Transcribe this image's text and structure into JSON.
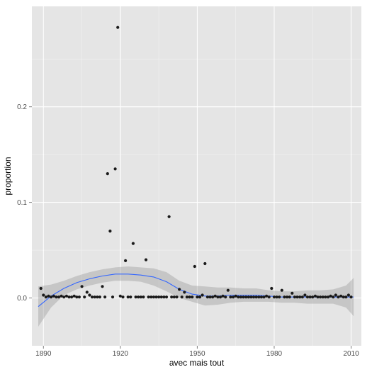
{
  "chart_data": {
    "type": "scatter",
    "title": "",
    "xlabel": "avec mais tout",
    "ylabel": "proportion",
    "xlim": [
      1885.5,
      2014
    ],
    "ylim": [
      -0.05,
      0.305
    ],
    "xticks": [
      1890,
      1920,
      1950,
      1980,
      2010
    ],
    "xtick_labels": [
      "1890",
      "1920",
      "1950",
      "1980",
      "2010"
    ],
    "yticks": [
      0.0,
      0.1,
      0.2
    ],
    "ytick_labels": [
      "0.0",
      "0.1",
      "0.2"
    ],
    "grid": true,
    "legend": "none",
    "colors": {
      "panel_background": "#e5e5e5",
      "grid_major": "#ffffff",
      "grid_minor": "#f2f2f2",
      "points": "#1a1a1a",
      "smooth_line": "#3366ff",
      "confidence_band": "#999999"
    },
    "points": [
      [
        1889,
        0.01
      ],
      [
        1890,
        0.003
      ],
      [
        1891,
        0.001
      ],
      [
        1892,
        0.002
      ],
      [
        1893,
        0.001
      ],
      [
        1894,
        0.002
      ],
      [
        1895,
        0.001
      ],
      [
        1896,
        0.001
      ],
      [
        1897,
        0.002
      ],
      [
        1898,
        0.001
      ],
      [
        1899,
        0.002
      ],
      [
        1900,
        0.001
      ],
      [
        1901,
        0.001
      ],
      [
        1902,
        0.002
      ],
      [
        1903,
        0.001
      ],
      [
        1904,
        0.001
      ],
      [
        1905,
        0.012
      ],
      [
        1906,
        0.001
      ],
      [
        1907,
        0.006
      ],
      [
        1908,
        0.003
      ],
      [
        1909,
        0.001
      ],
      [
        1910,
        0.001
      ],
      [
        1911,
        0.001
      ],
      [
        1912,
        0.001
      ],
      [
        1913,
        0.012
      ],
      [
        1914,
        0.001
      ],
      [
        1915,
        0.13
      ],
      [
        1916,
        0.07
      ],
      [
        1917,
        0.001
      ],
      [
        1918,
        0.135
      ],
      [
        1919,
        0.283
      ],
      [
        1920,
        0.002
      ],
      [
        1921,
        0.001
      ],
      [
        1922,
        0.039
      ],
      [
        1923,
        0.001
      ],
      [
        1924,
        0.001
      ],
      [
        1925,
        0.057
      ],
      [
        1926,
        0.001
      ],
      [
        1927,
        0.001
      ],
      [
        1928,
        0.001
      ],
      [
        1929,
        0.001
      ],
      [
        1930,
        0.04
      ],
      [
        1931,
        0.001
      ],
      [
        1932,
        0.001
      ],
      [
        1933,
        0.001
      ],
      [
        1934,
        0.001
      ],
      [
        1935,
        0.001
      ],
      [
        1936,
        0.001
      ],
      [
        1937,
        0.001
      ],
      [
        1938,
        0.001
      ],
      [
        1939,
        0.085
      ],
      [
        1940,
        0.001
      ],
      [
        1941,
        0.001
      ],
      [
        1942,
        0.001
      ],
      [
        1943,
        0.009
      ],
      [
        1944,
        0.001
      ],
      [
        1945,
        0.006
      ],
      [
        1946,
        0.001
      ],
      [
        1947,
        0.001
      ],
      [
        1948,
        0.001
      ],
      [
        1949,
        0.033
      ],
      [
        1950,
        0.001
      ],
      [
        1951,
        0.001
      ],
      [
        1952,
        0.003
      ],
      [
        1953,
        0.036
      ],
      [
        1954,
        0.001
      ],
      [
        1955,
        0.001
      ],
      [
        1956,
        0.001
      ],
      [
        1957,
        0.002
      ],
      [
        1958,
        0.001
      ],
      [
        1959,
        0.001
      ],
      [
        1960,
        0.002
      ],
      [
        1961,
        0.001
      ],
      [
        1962,
        0.008
      ],
      [
        1963,
        0.001
      ],
      [
        1964,
        0.001
      ],
      [
        1965,
        0.002
      ],
      [
        1966,
        0.001
      ],
      [
        1967,
        0.001
      ],
      [
        1968,
        0.001
      ],
      [
        1969,
        0.001
      ],
      [
        1970,
        0.001
      ],
      [
        1971,
        0.001
      ],
      [
        1972,
        0.001
      ],
      [
        1973,
        0.001
      ],
      [
        1974,
        0.001
      ],
      [
        1975,
        0.001
      ],
      [
        1976,
        0.001
      ],
      [
        1977,
        0.002
      ],
      [
        1978,
        0.001
      ],
      [
        1979,
        0.01
      ],
      [
        1980,
        0.001
      ],
      [
        1981,
        0.001
      ],
      [
        1982,
        0.001
      ],
      [
        1983,
        0.008
      ],
      [
        1984,
        0.001
      ],
      [
        1985,
        0.001
      ],
      [
        1986,
        0.001
      ],
      [
        1987,
        0.005
      ],
      [
        1988,
        0.001
      ],
      [
        1989,
        0.001
      ],
      [
        1990,
        0.001
      ],
      [
        1991,
        0.001
      ],
      [
        1992,
        0.003
      ],
      [
        1993,
        0.001
      ],
      [
        1994,
        0.001
      ],
      [
        1995,
        0.001
      ],
      [
        1996,
        0.002
      ],
      [
        1997,
        0.001
      ],
      [
        1998,
        0.001
      ],
      [
        1999,
        0.001
      ],
      [
        2000,
        0.001
      ],
      [
        2001,
        0.001
      ],
      [
        2002,
        0.002
      ],
      [
        2003,
        0.001
      ],
      [
        2004,
        0.003
      ],
      [
        2005,
        0.001
      ],
      [
        2006,
        0.002
      ],
      [
        2007,
        0.001
      ],
      [
        2008,
        0.001
      ],
      [
        2009,
        0.003
      ],
      [
        2010,
        0.001
      ]
    ],
    "smooth_fit": {
      "x": [
        1888,
        1893,
        1898,
        1903,
        1908,
        1913,
        1918,
        1923,
        1928,
        1933,
        1938,
        1943,
        1948,
        1953,
        1958,
        1963,
        1968,
        1973,
        1978,
        1983,
        1988,
        1993,
        1998,
        2003,
        2008,
        2011
      ],
      "y": [
        -0.009,
        0.002,
        0.01,
        0.016,
        0.02,
        0.023,
        0.025,
        0.025,
        0.024,
        0.022,
        0.017,
        0.009,
        0.004,
        0.002,
        0.002,
        0.003,
        0.003,
        0.003,
        0.002,
        0.001,
        0.001,
        0.001,
        0.001,
        0.001,
        0.001,
        0.001
      ],
      "lower": [
        -0.03,
        -0.01,
        0.003,
        0.009,
        0.013,
        0.016,
        0.018,
        0.018,
        0.017,
        0.013,
        0.007,
        0.0,
        -0.004,
        -0.008,
        -0.007,
        -0.005,
        -0.004,
        -0.004,
        -0.004,
        -0.005,
        -0.005,
        -0.006,
        -0.006,
        -0.006,
        -0.01,
        -0.019
      ],
      "upper": [
        0.012,
        0.014,
        0.018,
        0.023,
        0.027,
        0.03,
        0.032,
        0.033,
        0.032,
        0.031,
        0.027,
        0.018,
        0.013,
        0.012,
        0.011,
        0.011,
        0.01,
        0.01,
        0.008,
        0.007,
        0.007,
        0.008,
        0.008,
        0.009,
        0.013,
        0.021
      ]
    }
  }
}
